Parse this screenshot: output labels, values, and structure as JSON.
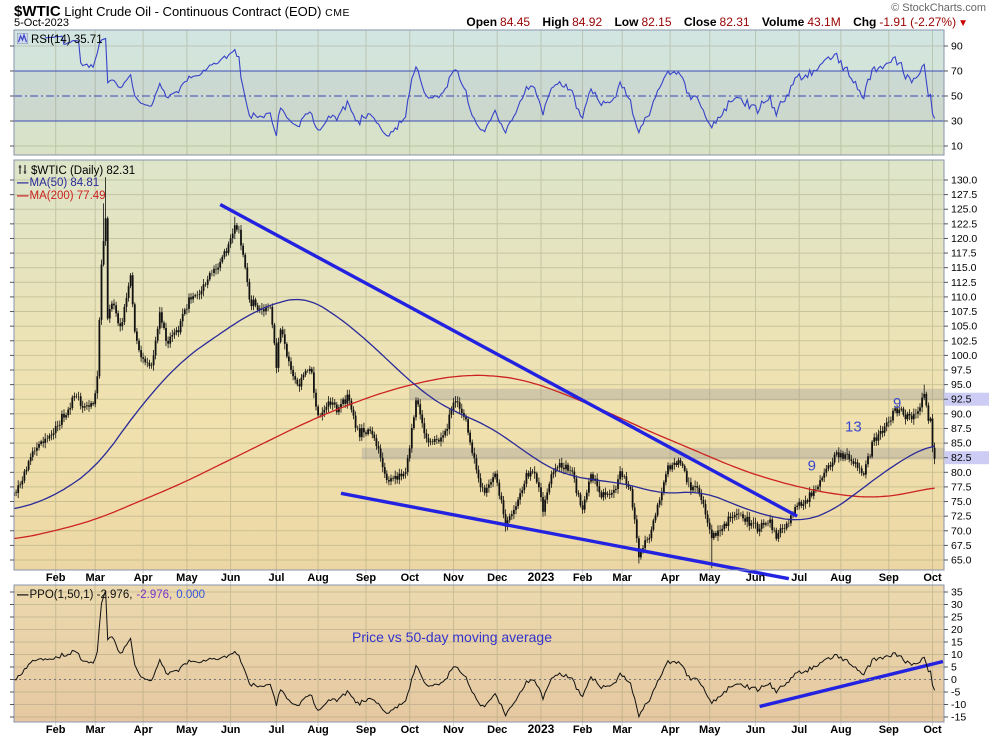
{
  "header": {
    "symbol": "$WTIC",
    "title": "Light Crude Oil - Continuous Contract (EOD)",
    "exchange": "CME",
    "date": "5-Oct-2023",
    "copyright": "© StockCharts.com",
    "quote": {
      "open_label": "Open",
      "open": "84.45",
      "high_label": "High",
      "high": "84.92",
      "low_label": "Low",
      "low": "82.15",
      "close_label": "Close",
      "close": "82.31",
      "volume_label": "Volume",
      "volume": "43.1M",
      "chg_label": "Chg",
      "chg": "-1.91 (-2.27%)",
      "chg_arrow": "▼"
    }
  },
  "legends": {
    "rsi": "RSI(14) 35.71",
    "price_line1": "$WTIC (Daily) 82.31",
    "ma50_dash": "—",
    "price_line2": "MA(50) 84.81",
    "ma200_dash": "—",
    "price_line3": "MA(200) 77.49",
    "ppo_dash": "—",
    "ppo_name": "PPO(1,50,1) -2.976,",
    "ppo_value2": "-2.976,",
    "ppo_value3": "0.000",
    "ppo_note": "Price vs 50-day moving average"
  },
  "colors": {
    "quote_value": "#990000",
    "candle": "#111111",
    "ma50": "#2a2a99",
    "ma200": "#cc2222",
    "rsi_line": "#3742c8",
    "rsi_guide": "#3a4ab8",
    "ppo_line": "#111111",
    "trendline": "#2222e0",
    "annotation": "#3848cc",
    "band": "rgba(130,130,148,0.28)",
    "axis_highlight": "rgba(162,162,235,0.55)",
    "grid": "rgba(148,148,112,0.38)",
    "border": "#8a93ad"
  },
  "chart_data": {
    "type": "candlestick",
    "title": "$WTIC Light Crude Oil - Continuous Contract (EOD) CME, daily, Jan 2022 - 5 Oct 2023",
    "days_total": 443,
    "x_months": [
      [
        "Feb",
        20
      ],
      [
        "Mar",
        39
      ],
      [
        "Apr",
        62
      ],
      [
        "May",
        83
      ],
      [
        "Jun",
        104
      ],
      [
        "Jul",
        126
      ],
      [
        "Aug",
        146
      ],
      [
        "Sep",
        169
      ],
      [
        "Oct",
        190
      ],
      [
        "Nov",
        211
      ],
      [
        "Dec",
        232
      ],
      [
        "2023",
        253
      ],
      [
        "Feb",
        273
      ],
      [
        "Mar",
        292
      ],
      [
        "Apr",
        315
      ],
      [
        "May",
        334
      ],
      [
        "Jun",
        356
      ],
      [
        "Jul",
        377
      ],
      [
        "Aug",
        397
      ],
      [
        "Sep",
        420
      ],
      [
        "Oct",
        441
      ]
    ],
    "price_panel": {
      "ylim": [
        65,
        130
      ],
      "ystep": 2.5,
      "grid": true,
      "legend_position": "top-left",
      "close_keypoints": [
        [
          0,
          76.1
        ],
        [
          4,
          79.0
        ],
        [
          9,
          83.8
        ],
        [
          14,
          85.1
        ],
        [
          19,
          86.8
        ],
        [
          24,
          89.7
        ],
        [
          29,
          93.1
        ],
        [
          34,
          91.1
        ],
        [
          38,
          91.6
        ],
        [
          40,
          95.7
        ],
        [
          42,
          115.7
        ],
        [
          44,
          123.7
        ],
        [
          45,
          106.0
        ],
        [
          47,
          109.3
        ],
        [
          51,
          104.7
        ],
        [
          54,
          110.0
        ],
        [
          56,
          113.9
        ],
        [
          58,
          104.2
        ],
        [
          61,
          99.3
        ],
        [
          66,
          98.3
        ],
        [
          70,
          106.9
        ],
        [
          74,
          102.1
        ],
        [
          79,
          104.7
        ],
        [
          84,
          109.8
        ],
        [
          89,
          110.5
        ],
        [
          93,
          113.2
        ],
        [
          98,
          115.1
        ],
        [
          103,
          118.9
        ],
        [
          106,
          122.1
        ],
        [
          108,
          120.7
        ],
        [
          110,
          117.6
        ],
        [
          113,
          109.6
        ],
        [
          118,
          107.6
        ],
        [
          123,
          108.4
        ],
        [
          126,
          98.5
        ],
        [
          128,
          104.8
        ],
        [
          133,
          97.6
        ],
        [
          137,
          94.7
        ],
        [
          142,
          98.6
        ],
        [
          146,
          89.0
        ],
        [
          151,
          92.1
        ],
        [
          156,
          90.8
        ],
        [
          160,
          93.1
        ],
        [
          165,
          86.9
        ],
        [
          170,
          86.8
        ],
        [
          174,
          85.1
        ],
        [
          179,
          78.7
        ],
        [
          184,
          79.5
        ],
        [
          188,
          79.7
        ],
        [
          193,
          92.6
        ],
        [
          198,
          85.6
        ],
        [
          203,
          85.1
        ],
        [
          208,
          87.9
        ],
        [
          212,
          92.6
        ],
        [
          217,
          88.9
        ],
        [
          222,
          80.1
        ],
        [
          226,
          76.3
        ],
        [
          231,
          80.0
        ],
        [
          236,
          71.0
        ],
        [
          241,
          74.3
        ],
        [
          246,
          79.6
        ],
        [
          250,
          80.3
        ],
        [
          254,
          73.8
        ],
        [
          258,
          79.9
        ],
        [
          263,
          81.3
        ],
        [
          268,
          79.7
        ],
        [
          273,
          73.4
        ],
        [
          277,
          79.7
        ],
        [
          282,
          76.3
        ],
        [
          287,
          76.3
        ],
        [
          291,
          79.7
        ],
        [
          296,
          76.7
        ],
        [
          300,
          66.2
        ],
        [
          302,
          67.6
        ],
        [
          305,
          69.3
        ],
        [
          310,
          75.7
        ],
        [
          314,
          80.7
        ],
        [
          319,
          82.5
        ],
        [
          324,
          77.9
        ],
        [
          329,
          76.8
        ],
        [
          333,
          71.3
        ],
        [
          335,
          68.6
        ],
        [
          338,
          70.0
        ],
        [
          343,
          71.7
        ],
        [
          347,
          72.7
        ],
        [
          352,
          71.7
        ],
        [
          357,
          70.2
        ],
        [
          362,
          71.8
        ],
        [
          366,
          69.2
        ],
        [
          371,
          70.6
        ],
        [
          375,
          73.9
        ],
        [
          380,
          75.4
        ],
        [
          385,
          77.1
        ],
        [
          390,
          80.6
        ],
        [
          394,
          82.8
        ],
        [
          399,
          83.2
        ],
        [
          404,
          81.3
        ],
        [
          408,
          79.8
        ],
        [
          413,
          85.6
        ],
        [
          418,
          87.5
        ],
        [
          423,
          90.8
        ],
        [
          427,
          90.0
        ],
        [
          431,
          89.6
        ],
        [
          434,
          90.8
        ],
        [
          437,
          93.7
        ],
        [
          439,
          88.8
        ],
        [
          440,
          89.2
        ],
        [
          441,
          84.2
        ],
        [
          442,
          82.31
        ]
      ],
      "spikes_high": [
        [
          43,
          126.0
        ],
        [
          44,
          130.5
        ],
        [
          106,
          123.7
        ],
        [
          437,
          95.0
        ]
      ],
      "spikes_low": [
        [
          300,
          64.4
        ],
        [
          335,
          63.6
        ]
      ],
      "ma50_keypoints": [
        [
          0,
          73.5
        ],
        [
          20,
          76.0
        ],
        [
          40,
          81.0
        ],
        [
          60,
          91.0
        ],
        [
          80,
          99.0
        ],
        [
          100,
          104.0
        ],
        [
          115,
          107.5
        ],
        [
          130,
          109.5
        ],
        [
          140,
          110.0
        ],
        [
          150,
          108.0
        ],
        [
          165,
          104.0
        ],
        [
          180,
          99.0
        ],
        [
          195,
          94.0
        ],
        [
          210,
          90.5
        ],
        [
          225,
          88.5
        ],
        [
          240,
          85.0
        ],
        [
          253,
          81.5
        ],
        [
          265,
          79.5
        ],
        [
          280,
          78.6
        ],
        [
          295,
          78.0
        ],
        [
          310,
          76.3
        ],
        [
          320,
          76.5
        ],
        [
          330,
          76.8
        ],
        [
          340,
          75.4
        ],
        [
          355,
          73.2
        ],
        [
          370,
          71.9
        ],
        [
          378,
          71.6
        ],
        [
          390,
          72.8
        ],
        [
          400,
          75.2
        ],
        [
          410,
          78.0
        ],
        [
          420,
          80.6
        ],
        [
          430,
          82.9
        ],
        [
          437,
          84.2
        ],
        [
          442,
          84.81
        ]
      ],
      "ma200_keypoints": [
        [
          0,
          68.5
        ],
        [
          20,
          70.0
        ],
        [
          40,
          72.0
        ],
        [
          60,
          75.0
        ],
        [
          80,
          78.0
        ],
        [
          100,
          81.5
        ],
        [
          120,
          85.0
        ],
        [
          140,
          88.5
        ],
        [
          160,
          91.5
        ],
        [
          180,
          94.0
        ],
        [
          200,
          95.8
        ],
        [
          215,
          96.6
        ],
        [
          230,
          96.6
        ],
        [
          245,
          95.8
        ],
        [
          260,
          94.0
        ],
        [
          275,
          91.8
        ],
        [
          290,
          89.5
        ],
        [
          305,
          87.0
        ],
        [
          320,
          84.8
        ],
        [
          335,
          82.5
        ],
        [
          350,
          80.3
        ],
        [
          365,
          78.6
        ],
        [
          380,
          77.2
        ],
        [
          395,
          76.2
        ],
        [
          405,
          75.8
        ],
        [
          415,
          75.7
        ],
        [
          425,
          76.1
        ],
        [
          435,
          76.9
        ],
        [
          442,
          77.49
        ]
      ],
      "bands": [
        {
          "price_from": 92.3,
          "price_to": 94.3,
          "start_day": 190,
          "axis_label": 92.5
        },
        {
          "price_from": 82.2,
          "price_to": 84.2,
          "start_day": 167,
          "axis_label": 82.5
        }
      ],
      "trendlines": [
        {
          "d1": 99,
          "p1": 125.8,
          "d2": 376,
          "p2": 72.5
        },
        {
          "d1": 157,
          "p1": 76.4,
          "d2": 372,
          "p2": 61.8
        }
      ],
      "annotations": [
        {
          "day": 424,
          "price": 91.0,
          "text": "9"
        },
        {
          "day": 403,
          "price": 87.0,
          "text": "13"
        },
        {
          "day": 383,
          "price": 80.3,
          "text": "9"
        }
      ]
    },
    "rsi_panel": {
      "indicator": "RSI",
      "period": 14,
      "last": 35.71,
      "yticks": [
        10,
        30,
        50,
        70,
        90
      ],
      "overbought": 70,
      "midline": 50,
      "oversold": 30
    },
    "ppo_panel": {
      "indicator": "PPO",
      "params": "1,50,1",
      "last": -2.976,
      "signal": -2.976,
      "hist": 0.0,
      "yticks": [
        -15,
        -10,
        -5,
        0,
        5,
        10,
        15,
        20,
        25,
        30,
        35
      ],
      "zero_line": 0,
      "trendline": {
        "d1": 358,
        "v1": -10.8,
        "d2": 446,
        "v2": 7.2
      },
      "note_anchor": {
        "day": 218,
        "value": 16.6
      }
    }
  }
}
